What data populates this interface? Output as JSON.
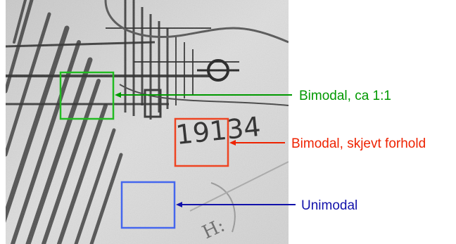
{
  "figure": {
    "scan_image": {
      "description_icon": "scanned-map-image",
      "handwritten_digits": "19134",
      "handwritten_fragment": "H:"
    },
    "regions": [
      {
        "label": "Bimodal, ca 1:1",
        "color": "#22bb22",
        "line_color": "#009900"
      },
      {
        "label": "Bimodal, skjevt forhold",
        "color": "#ee4422",
        "line_color": "#ee2200"
      },
      {
        "label": "Unimodal",
        "color": "#4466ee",
        "line_color": "#1111aa"
      }
    ]
  }
}
